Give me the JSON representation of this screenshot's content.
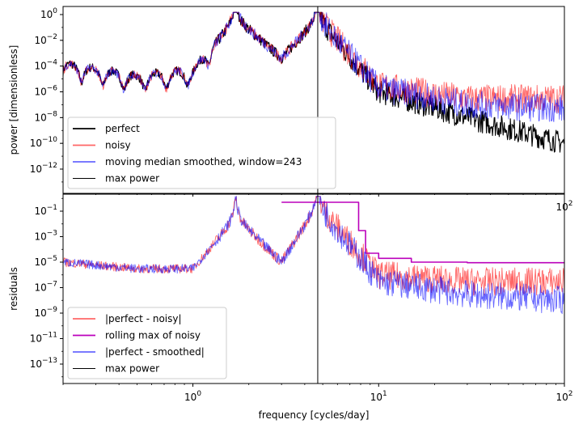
{
  "chart_data": [
    {
      "type": "line",
      "ylabel": "power [dimensionless]",
      "xscale": "log",
      "yscale": "log",
      "xlim": [
        0.2,
        100
      ],
      "ylim": [
        1e-14,
        2
      ],
      "legend_loc": "lower-left",
      "x_ticks": [
        {
          "value": 1,
          "base": "10",
          "exp": "0"
        },
        {
          "value": 10,
          "base": "10",
          "exp": "1"
        },
        {
          "value": 100,
          "base": "10",
          "exp": "2"
        }
      ],
      "y_ticks": [
        {
          "value": 1,
          "base": "10",
          "exp": "0"
        },
        {
          "value": 0.01,
          "base": "10",
          "exp": "−2"
        },
        {
          "value": 0.0001,
          "base": "10",
          "exp": "−4"
        },
        {
          "value": 1e-06,
          "base": "10",
          "exp": "−6"
        },
        {
          "value": 1e-08,
          "base": "10",
          "exp": "−8"
        },
        {
          "value": 1e-10,
          "base": "10",
          "exp": "−10"
        },
        {
          "value": 1e-12,
          "base": "10",
          "exp": "−12"
        }
      ],
      "peaks": [
        1.7,
        4.7
      ],
      "series": [
        {
          "name": "perfect",
          "color": "#000000",
          "opacity": 1.0,
          "width": 1.5,
          "x": [
            0.2,
            0.5,
            1.0,
            1.7,
            3.0,
            4.7,
            10,
            30,
            100
          ],
          "y": [
            0.0001,
            1e-05,
            3e-05,
            0.5,
            0.0004,
            0.5,
            1e-06,
            1e-08,
            1e-10
          ]
        },
        {
          "name": "noisy",
          "color": "#ff0000",
          "opacity": 0.6,
          "width": 1.5,
          "x": [
            0.2,
            0.5,
            1.0,
            1.7,
            3.0,
            4.7,
            10,
            30,
            100
          ],
          "y": [
            0.0001,
            1e-05,
            3e-05,
            0.5,
            0.0004,
            0.5,
            3e-06,
            3e-07,
            3e-07
          ]
        },
        {
          "name": "moving median smoothed, window=243",
          "color": "#0000ff",
          "opacity": 0.6,
          "width": 1.5,
          "x": [
            0.2,
            0.5,
            1.0,
            1.7,
            3.0,
            4.7,
            10,
            30,
            100
          ],
          "y": [
            0.0001,
            1e-05,
            3e-05,
            0.5,
            0.0004,
            0.5,
            2e-06,
            1e-07,
            5e-08
          ]
        },
        {
          "name": "max power",
          "color": "#000000",
          "opacity": 1.0,
          "width": 1.0,
          "type": "vline",
          "x": 4.7
        }
      ]
    },
    {
      "type": "line",
      "xlabel": "frequency [cycles/day]",
      "ylabel": "residuals",
      "xscale": "log",
      "yscale": "log",
      "xlim": [
        0.2,
        100
      ],
      "ylim": [
        1e-14,
        2
      ],
      "legend_loc": "lower-left",
      "x_ticks": [
        {
          "value": 1,
          "base": "10",
          "exp": "0"
        },
        {
          "value": 10,
          "base": "10",
          "exp": "1"
        },
        {
          "value": 100,
          "base": "10",
          "exp": "2"
        }
      ],
      "y_ticks": [
        {
          "value": 0.1,
          "base": "10",
          "exp": "−1"
        },
        {
          "value": 0.001,
          "base": "10",
          "exp": "−3"
        },
        {
          "value": 1e-05,
          "base": "10",
          "exp": "−5"
        },
        {
          "value": 1e-07,
          "base": "10",
          "exp": "−7"
        },
        {
          "value": 1e-09,
          "base": "10",
          "exp": "−9"
        },
        {
          "value": 1e-11,
          "base": "10",
          "exp": "−11"
        },
        {
          "value": 1e-13,
          "base": "10",
          "exp": "−13"
        }
      ],
      "peaks": [
        1.7,
        4.7
      ],
      "series": [
        {
          "name": "|perfect - noisy|",
          "color": "#ff0000",
          "opacity": 0.6,
          "width": 1.5,
          "x": [
            0.2,
            0.5,
            1.0,
            1.7,
            3.0,
            4.7,
            10,
            30,
            100
          ],
          "y": [
            1e-05,
            3e-06,
            3e-06,
            0.03,
            1e-05,
            0.3,
            1e-06,
            3e-07,
            3e-07
          ]
        },
        {
          "name": "rolling max of noisy",
          "color": "#bb00bb",
          "opacity": 1.0,
          "width": 1.5,
          "x": [
            3.0,
            4.7,
            7.8,
            7.8,
            8.5,
            10,
            15,
            30,
            100
          ],
          "y": [
            0.5,
            0.5,
            0.5,
            0.003,
            5e-05,
            2e-05,
            1e-05,
            9e-06,
            8e-06
          ]
        },
        {
          "name": "|perfect - smoothed|",
          "color": "#0000ff",
          "opacity": 0.6,
          "width": 1.5,
          "x": [
            0.2,
            0.5,
            1.0,
            1.7,
            3.0,
            4.7,
            10,
            30,
            100
          ],
          "y": [
            1e-05,
            3e-06,
            3e-06,
            0.03,
            1e-05,
            0.3,
            3e-07,
            3e-08,
            1e-08
          ]
        },
        {
          "name": "max power",
          "color": "#000000",
          "opacity": 1.0,
          "width": 1.0,
          "type": "vline",
          "x": 4.7
        }
      ]
    }
  ]
}
